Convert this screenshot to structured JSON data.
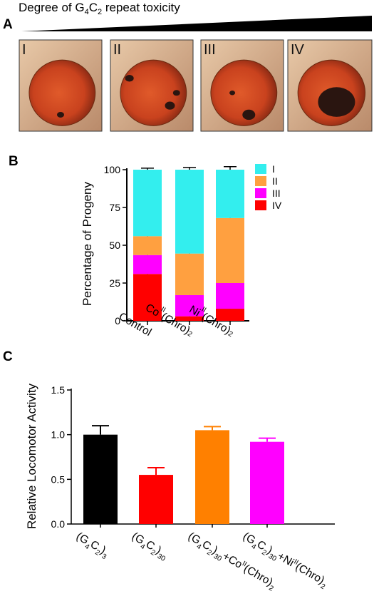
{
  "header": {
    "prefix": "Degree of G",
    "sub1": "4",
    "middle": "C",
    "sub2": "2",
    "suffix": " repeat toxicity"
  },
  "panel_a": {
    "letter": "A",
    "eyes": [
      {
        "label": "I",
        "dark_spots": 1
      },
      {
        "label": "II",
        "dark_spots": 3
      },
      {
        "label": "III",
        "dark_spots": 2
      },
      {
        "label": "IV",
        "dark_spots": 1
      }
    ]
  },
  "panel_b_letter": "B",
  "panel_c_letter": "C",
  "chart_data": [
    {
      "type": "bar",
      "stacked": true,
      "ylabel": "Percentage of Progeny",
      "ylim": [
        0,
        100
      ],
      "yticks": [
        0,
        25,
        50,
        75,
        100
      ],
      "grid": false,
      "legend_position": "top-right",
      "categories": [
        {
          "base": "Control",
          "sup": "",
          "mid": "",
          "sub": ""
        },
        {
          "base": "Co",
          "sup": "II",
          "mid": "(Chro)",
          "sub": "2"
        },
        {
          "base": "Ni",
          "sup": "II",
          "mid": "(Chro)",
          "sub": "2"
        }
      ],
      "series": [
        {
          "name": "IV",
          "color": "#ff0000",
          "values": [
            31,
            3,
            8
          ],
          "errors": [
            2,
            1.5,
            2.5
          ]
        },
        {
          "name": "III",
          "color": "#ff00ff",
          "values": [
            12.5,
            14,
            17
          ],
          "errors": [
            2,
            2.5,
            2.5
          ]
        },
        {
          "name": "II",
          "color": "#ffa040",
          "values": [
            12.5,
            27.5,
            43
          ],
          "errors": [
            2,
            4.5,
            2.5
          ]
        },
        {
          "name": "I",
          "color": "#33eeee",
          "values": [
            44,
            55.5,
            32
          ],
          "errors": [
            1,
            1.5,
            2
          ]
        }
      ]
    },
    {
      "type": "bar",
      "ylabel": "Relative Locomotor Activity",
      "ylim": [
        0,
        1.5
      ],
      "yticks": [
        "0.0",
        "0.5",
        "1.0",
        "1.5"
      ],
      "grid": false,
      "categories": [
        {
          "line1": "(G",
          "s1": "4",
          "m1": "C",
          "s2": "2",
          "m2": ")",
          "s3": "3",
          "plus": "",
          "p1": "",
          "p1sup": "",
          "p2": "",
          "p2sub": ""
        },
        {
          "line1": "(G",
          "s1": "4",
          "m1": "C",
          "s2": "2",
          "m2": ")",
          "s3": "30",
          "plus": "",
          "p1": "",
          "p1sup": "",
          "p2": "",
          "p2sub": ""
        },
        {
          "line1": "(G",
          "s1": "4",
          "m1": "C",
          "s2": "2",
          "m2": ")",
          "s3": "30",
          "plus": "+Co",
          "p1": "",
          "p1sup": "II",
          "p2": "(Chro)",
          "p2sub": "2"
        },
        {
          "line1": "(G",
          "s1": "4",
          "m1": "C",
          "s2": "2",
          "m2": ")",
          "s3": "30",
          "plus": "+Ni",
          "p1": "",
          "p1sup": "II",
          "p2": "(Chro)",
          "p2sub": "2"
        }
      ],
      "values": [
        1.0,
        0.55,
        1.05,
        0.92
      ],
      "errors": [
        0.1,
        0.08,
        0.04,
        0.04
      ],
      "colors": [
        "#000000",
        "#ff0000",
        "#ff8000",
        "#ff00ff"
      ]
    }
  ]
}
